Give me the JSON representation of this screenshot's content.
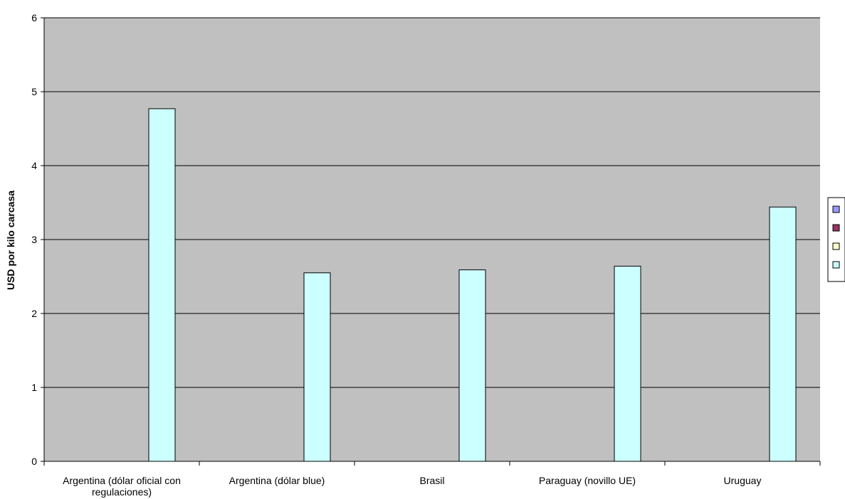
{
  "chart_data": {
    "type": "bar",
    "title": "",
    "xlabel": "",
    "ylabel": "USD por kilo carcasa",
    "ylim": [
      0,
      6
    ],
    "yticks": [
      0,
      1,
      2,
      3,
      4,
      5,
      6
    ],
    "categories": [
      "Argentina (dólar oficial con regulaciones)",
      "Argentina (dólar blue)",
      "Brasil",
      "Paraguay (novillo UE)",
      "Uruguay"
    ],
    "category_lines": [
      [
        "Argentina (dólar oficial con",
        "regulaciones)"
      ],
      [
        "Argentina (dólar blue)"
      ],
      [
        "Brasil"
      ],
      [
        "Paraguay (novillo UE)"
      ],
      [
        "Uruguay"
      ]
    ],
    "series": [
      {
        "color": "#9999ff",
        "values": [
          null,
          null,
          null,
          null,
          null
        ]
      },
      {
        "color": "#993366",
        "values": [
          null,
          null,
          null,
          null,
          null
        ]
      },
      {
        "color": "#ffffcc",
        "values": [
          null,
          null,
          null,
          null,
          null
        ]
      },
      {
        "color": "#ccffff",
        "values": [
          4.77,
          2.55,
          2.59,
          2.64,
          3.44
        ]
      }
    ],
    "plot_background": "#c0c0c0",
    "grid": true,
    "legend_position": "right"
  }
}
